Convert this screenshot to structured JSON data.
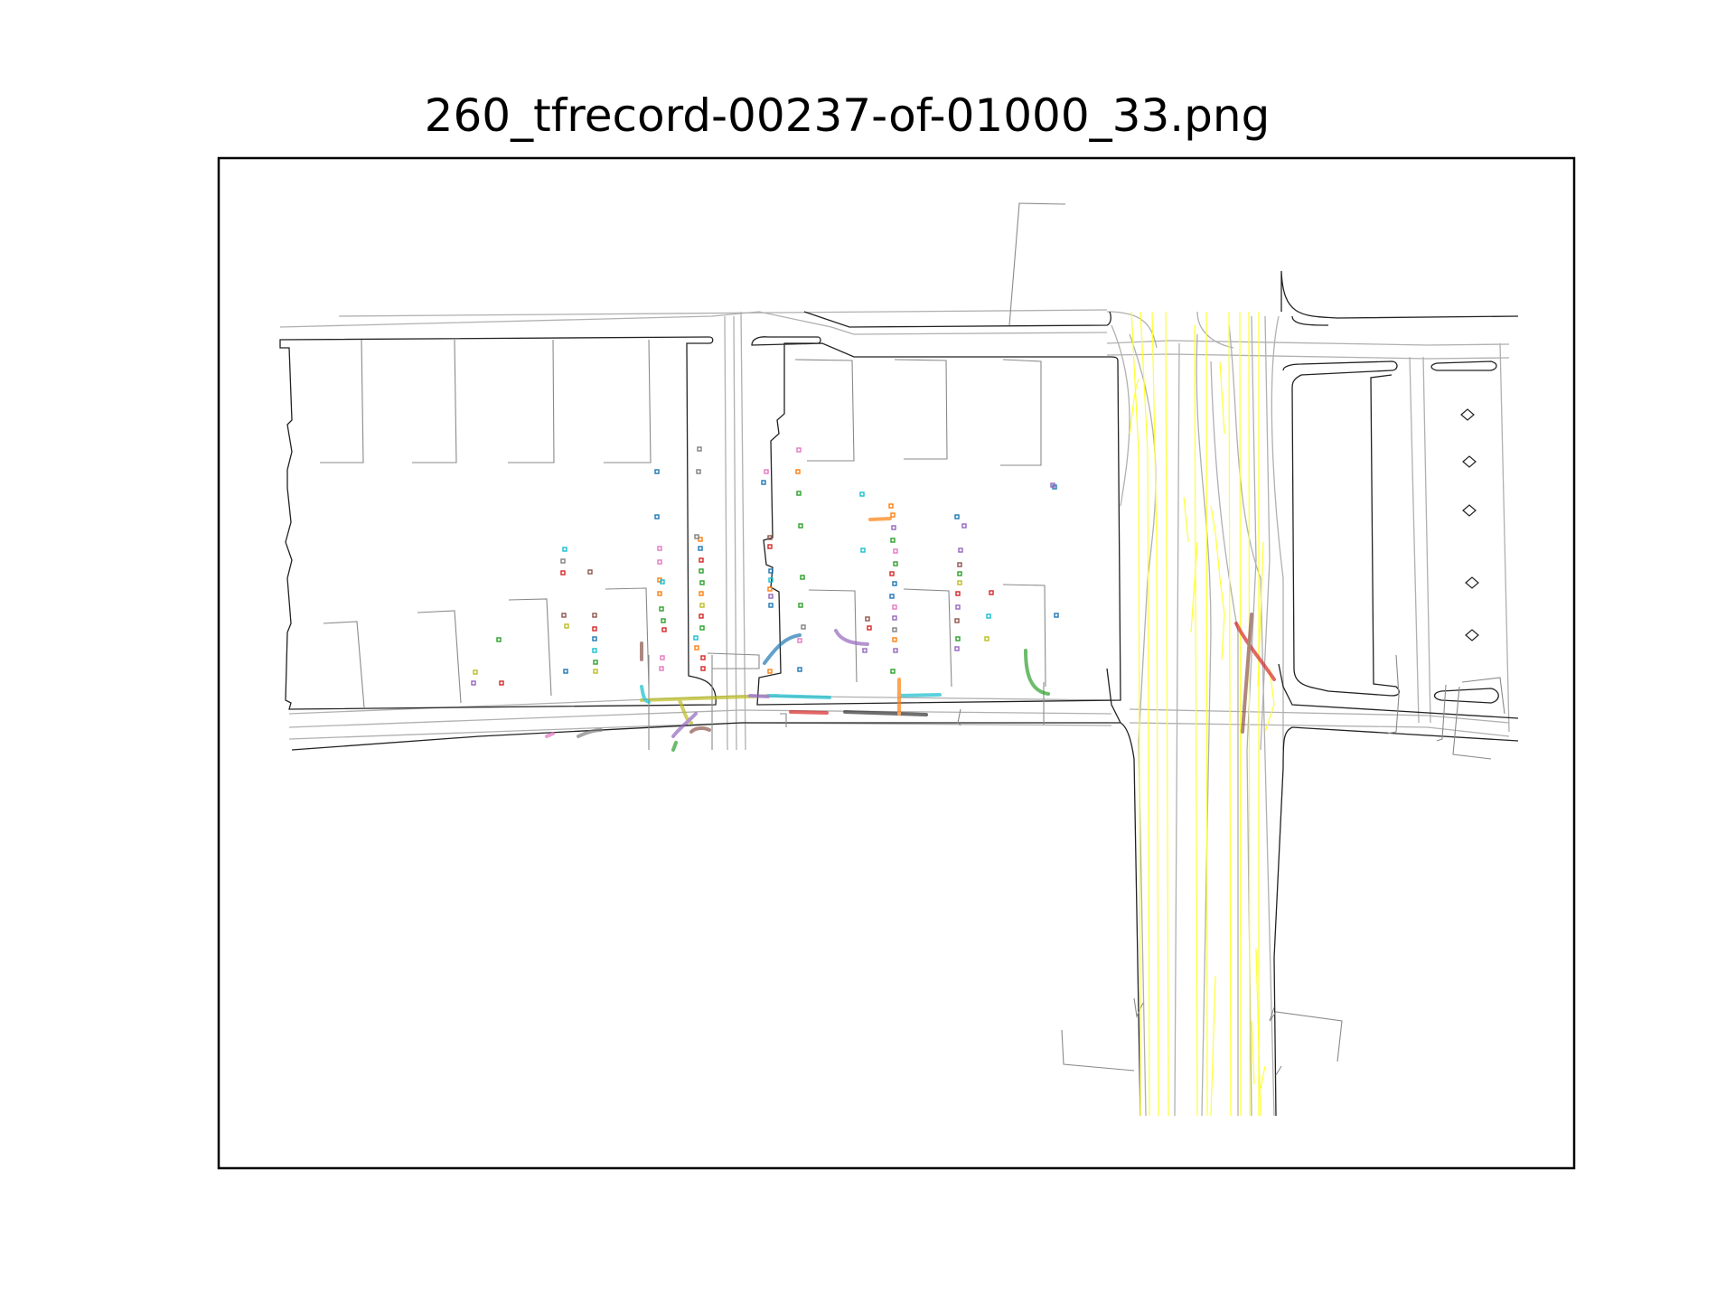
{
  "figure": {
    "title": "260_tfrecord-00237-of-01000_33.png"
  },
  "map": {
    "colors": {
      "road_edge": "#000000",
      "lane_center": "#b0b0b0",
      "crosswalk": "#808080",
      "lane_marking_yellow": "#ffff00",
      "frame": "#000000"
    },
    "legend": "none",
    "axis_ticks": "hidden",
    "agent_palette": [
      "#1f77b4",
      "#ff7f0e",
      "#2ca02c",
      "#d62728",
      "#9467bd",
      "#8c564b",
      "#e377c2",
      "#7f7f7f",
      "#bcbd22",
      "#17becf"
    ]
  }
}
